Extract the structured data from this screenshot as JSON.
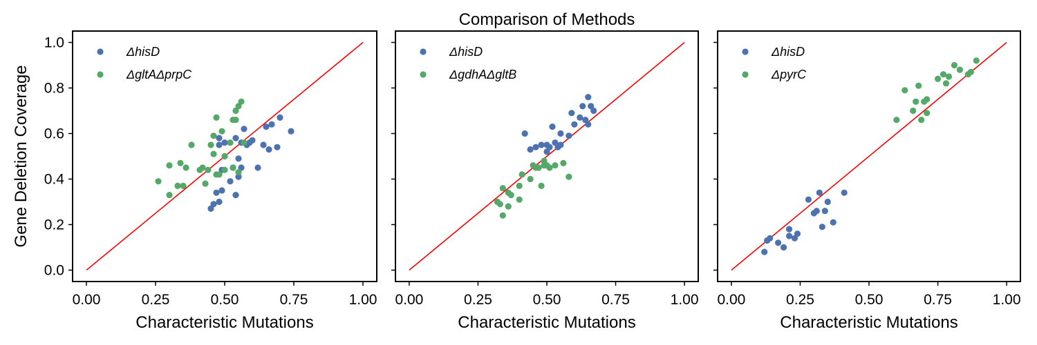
{
  "title": "Comparison of Methods",
  "colors": {
    "series_a": "#4c72b0",
    "series_b": "#55a868",
    "reference_line": "#ff0000"
  },
  "chart_data": [
    {
      "type": "scatter",
      "xlabel": "Characteristic Mutations",
      "ylabel": "Gene Deletion Coverage",
      "xlim": [
        -0.05,
        1.05
      ],
      "ylim": [
        -0.05,
        1.05
      ],
      "xticks": [
        "0.00",
        "0.25",
        "0.50",
        "0.75",
        "1.00"
      ],
      "yticks": [
        "0.0",
        "0.2",
        "0.4",
        "0.6",
        "0.8",
        "1.0"
      ],
      "grid": false,
      "legend": "top-left",
      "reference_line": [
        [
          0,
          0
        ],
        [
          1,
          1
        ]
      ],
      "series": [
        {
          "name": "ΔhisD",
          "color": "#4c72b0",
          "points": [
            [
              0.45,
              0.27
            ],
            [
              0.46,
              0.29
            ],
            [
              0.47,
              0.34
            ],
            [
              0.48,
              0.3
            ],
            [
              0.49,
              0.35
            ],
            [
              0.49,
              0.44
            ],
            [
              0.48,
              0.55
            ],
            [
              0.48,
              0.58
            ],
            [
              0.5,
              0.56
            ],
            [
              0.52,
              0.39
            ],
            [
              0.53,
              0.45
            ],
            [
              0.54,
              0.58
            ],
            [
              0.54,
              0.33
            ],
            [
              0.55,
              0.49
            ],
            [
              0.55,
              0.41
            ],
            [
              0.56,
              0.45
            ],
            [
              0.56,
              0.56
            ],
            [
              0.57,
              0.62
            ],
            [
              0.58,
              0.55
            ],
            [
              0.59,
              0.56
            ],
            [
              0.6,
              0.57
            ],
            [
              0.62,
              0.45
            ],
            [
              0.64,
              0.55
            ],
            [
              0.65,
              0.63
            ],
            [
              0.66,
              0.53
            ],
            [
              0.67,
              0.64
            ],
            [
              0.69,
              0.54
            ],
            [
              0.7,
              0.67
            ],
            [
              0.74,
              0.61
            ]
          ]
        },
        {
          "name": "ΔgltAΔprpC",
          "color": "#55a868",
          "points": [
            [
              0.26,
              0.39
            ],
            [
              0.3,
              0.33
            ],
            [
              0.3,
              0.46
            ],
            [
              0.33,
              0.37
            ],
            [
              0.34,
              0.47
            ],
            [
              0.35,
              0.37
            ],
            [
              0.36,
              0.45
            ],
            [
              0.38,
              0.55
            ],
            [
              0.41,
              0.44
            ],
            [
              0.42,
              0.45
            ],
            [
              0.43,
              0.38
            ],
            [
              0.44,
              0.44
            ],
            [
              0.45,
              0.55
            ],
            [
              0.46,
              0.59
            ],
            [
              0.46,
              0.51
            ],
            [
              0.47,
              0.42
            ],
            [
              0.47,
              0.67
            ],
            [
              0.48,
              0.42
            ],
            [
              0.49,
              0.61
            ],
            [
              0.5,
              0.5
            ],
            [
              0.5,
              0.44
            ],
            [
              0.52,
              0.56
            ],
            [
              0.53,
              0.66
            ],
            [
              0.53,
              0.45
            ],
            [
              0.54,
              0.7
            ],
            [
              0.54,
              0.66
            ],
            [
              0.55,
              0.43
            ],
            [
              0.55,
              0.72
            ],
            [
              0.56,
              0.74
            ],
            [
              0.57,
              0.56
            ]
          ]
        }
      ]
    },
    {
      "type": "scatter",
      "xlabel": "Characteristic Mutations",
      "ylabel": "",
      "xlim": [
        -0.05,
        1.05
      ],
      "ylim": [
        -0.05,
        1.05
      ],
      "xticks": [
        "0.00",
        "0.25",
        "0.50",
        "0.75",
        "1.00"
      ],
      "yticks": [],
      "grid": false,
      "legend": "top-left",
      "reference_line": [
        [
          0,
          0
        ],
        [
          1,
          1
        ]
      ],
      "series": [
        {
          "name": "ΔhisD",
          "color": "#4c72b0",
          "points": [
            [
              0.42,
              0.6
            ],
            [
              0.44,
              0.53
            ],
            [
              0.46,
              0.54
            ],
            [
              0.48,
              0.55
            ],
            [
              0.5,
              0.55
            ],
            [
              0.5,
              0.52
            ],
            [
              0.51,
              0.54
            ],
            [
              0.52,
              0.63
            ],
            [
              0.53,
              0.56
            ],
            [
              0.54,
              0.54
            ],
            [
              0.55,
              0.6
            ],
            [
              0.58,
              0.59
            ],
            [
              0.59,
              0.69
            ],
            [
              0.6,
              0.64
            ],
            [
              0.62,
              0.67
            ],
            [
              0.63,
              0.72
            ],
            [
              0.64,
              0.66
            ],
            [
              0.65,
              0.76
            ],
            [
              0.65,
              0.64
            ],
            [
              0.66,
              0.72
            ],
            [
              0.67,
              0.7
            ],
            [
              0.55,
              0.55
            ]
          ]
        },
        {
          "name": "ΔgdhAΔgltB",
          "color": "#55a868",
          "points": [
            [
              0.32,
              0.3
            ],
            [
              0.33,
              0.29
            ],
            [
              0.34,
              0.36
            ],
            [
              0.34,
              0.24
            ],
            [
              0.36,
              0.28
            ],
            [
              0.36,
              0.34
            ],
            [
              0.37,
              0.33
            ],
            [
              0.4,
              0.31
            ],
            [
              0.4,
              0.37
            ],
            [
              0.41,
              0.42
            ],
            [
              0.44,
              0.4
            ],
            [
              0.45,
              0.46
            ],
            [
              0.46,
              0.45
            ],
            [
              0.47,
              0.45
            ],
            [
              0.48,
              0.37
            ],
            [
              0.49,
              0.48
            ],
            [
              0.49,
              0.46
            ],
            [
              0.5,
              0.46
            ],
            [
              0.51,
              0.45
            ],
            [
              0.53,
              0.46
            ],
            [
              0.56,
              0.47
            ],
            [
              0.58,
              0.41
            ]
          ]
        }
      ]
    },
    {
      "type": "scatter",
      "xlabel": "Characteristic Mutations",
      "ylabel": "",
      "xlim": [
        -0.05,
        1.05
      ],
      "ylim": [
        -0.05,
        1.05
      ],
      "xticks": [
        "0.00",
        "0.25",
        "0.50",
        "0.75",
        "1.00"
      ],
      "yticks": [],
      "grid": false,
      "legend": "top-left",
      "reference_line": [
        [
          0,
          0
        ],
        [
          1,
          1
        ]
      ],
      "series": [
        {
          "name": "ΔhisD",
          "color": "#4c72b0",
          "points": [
            [
              0.12,
              0.08
            ],
            [
              0.13,
              0.13
            ],
            [
              0.14,
              0.14
            ],
            [
              0.17,
              0.12
            ],
            [
              0.19,
              0.1
            ],
            [
              0.21,
              0.15
            ],
            [
              0.21,
              0.18
            ],
            [
              0.23,
              0.14
            ],
            [
              0.24,
              0.16
            ],
            [
              0.28,
              0.31
            ],
            [
              0.3,
              0.25
            ],
            [
              0.31,
              0.26
            ],
            [
              0.32,
              0.34
            ],
            [
              0.33,
              0.19
            ],
            [
              0.34,
              0.26
            ],
            [
              0.35,
              0.3
            ],
            [
              0.37,
              0.21
            ],
            [
              0.41,
              0.34
            ]
          ]
        },
        {
          "name": "ΔpyrC",
          "color": "#55a868",
          "points": [
            [
              0.6,
              0.66
            ],
            [
              0.63,
              0.79
            ],
            [
              0.66,
              0.7
            ],
            [
              0.67,
              0.74
            ],
            [
              0.68,
              0.81
            ],
            [
              0.69,
              0.66
            ],
            [
              0.7,
              0.74
            ],
            [
              0.71,
              0.75
            ],
            [
              0.71,
              0.69
            ],
            [
              0.75,
              0.84
            ],
            [
              0.77,
              0.86
            ],
            [
              0.78,
              0.82
            ],
            [
              0.79,
              0.85
            ],
            [
              0.81,
              0.9
            ],
            [
              0.83,
              0.88
            ],
            [
              0.86,
              0.86
            ],
            [
              0.87,
              0.87
            ],
            [
              0.89,
              0.92
            ]
          ]
        }
      ]
    }
  ]
}
